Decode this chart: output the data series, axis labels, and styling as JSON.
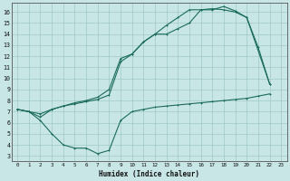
{
  "xlabel": "Humidex (Indice chaleur)",
  "xlim": [
    -0.5,
    23.5
  ],
  "ylim": [
    2.5,
    16.8
  ],
  "yticks": [
    3,
    4,
    5,
    6,
    7,
    8,
    9,
    10,
    11,
    12,
    13,
    14,
    15,
    16
  ],
  "xticks": [
    0,
    1,
    2,
    3,
    4,
    5,
    6,
    7,
    8,
    9,
    10,
    11,
    12,
    13,
    14,
    15,
    16,
    17,
    18,
    19,
    20,
    21,
    22,
    23
  ],
  "bg_color": "#c8e6e6",
  "line_color": "#1a6b5a",
  "grid_color": "#a0c8c8",
  "curve1_x": [
    0,
    1,
    2,
    3,
    4,
    5,
    6,
    7,
    8,
    9,
    10,
    11,
    12,
    13,
    14,
    15,
    16,
    17,
    18,
    19,
    20,
    22
  ],
  "curve1_y": [
    7.2,
    7.0,
    6.5,
    7.2,
    7.5,
    7.8,
    8.0,
    8.3,
    9.0,
    11.8,
    12.2,
    13.3,
    14.0,
    14.0,
    14.5,
    15.0,
    16.2,
    16.2,
    16.5,
    16.1,
    15.5,
    9.5
  ],
  "curve2_x": [
    0,
    1,
    2,
    3,
    4,
    5,
    6,
    7,
    8,
    9,
    10,
    11,
    12,
    13,
    14,
    15,
    16,
    17,
    18,
    19,
    20,
    21,
    22
  ],
  "curve2_y": [
    7.2,
    7.0,
    6.8,
    7.2,
    7.5,
    7.7,
    7.9,
    8.1,
    8.5,
    11.5,
    12.2,
    13.3,
    14.0,
    14.8,
    15.5,
    16.2,
    16.2,
    16.3,
    16.2,
    16.0,
    15.5,
    12.8,
    9.5
  ],
  "curve3_x": [
    0,
    1,
    2,
    3,
    4,
    5,
    6,
    7,
    8,
    9,
    10,
    11,
    12,
    13,
    14,
    15,
    16,
    17,
    18,
    19,
    20,
    21,
    22
  ],
  "curve3_y": [
    7.2,
    7.0,
    6.2,
    5.0,
    4.0,
    3.7,
    3.7,
    3.2,
    3.5,
    6.2,
    7.0,
    7.2,
    7.4,
    7.5,
    7.6,
    7.7,
    7.8,
    7.9,
    8.0,
    8.1,
    8.2,
    8.4,
    8.6
  ]
}
